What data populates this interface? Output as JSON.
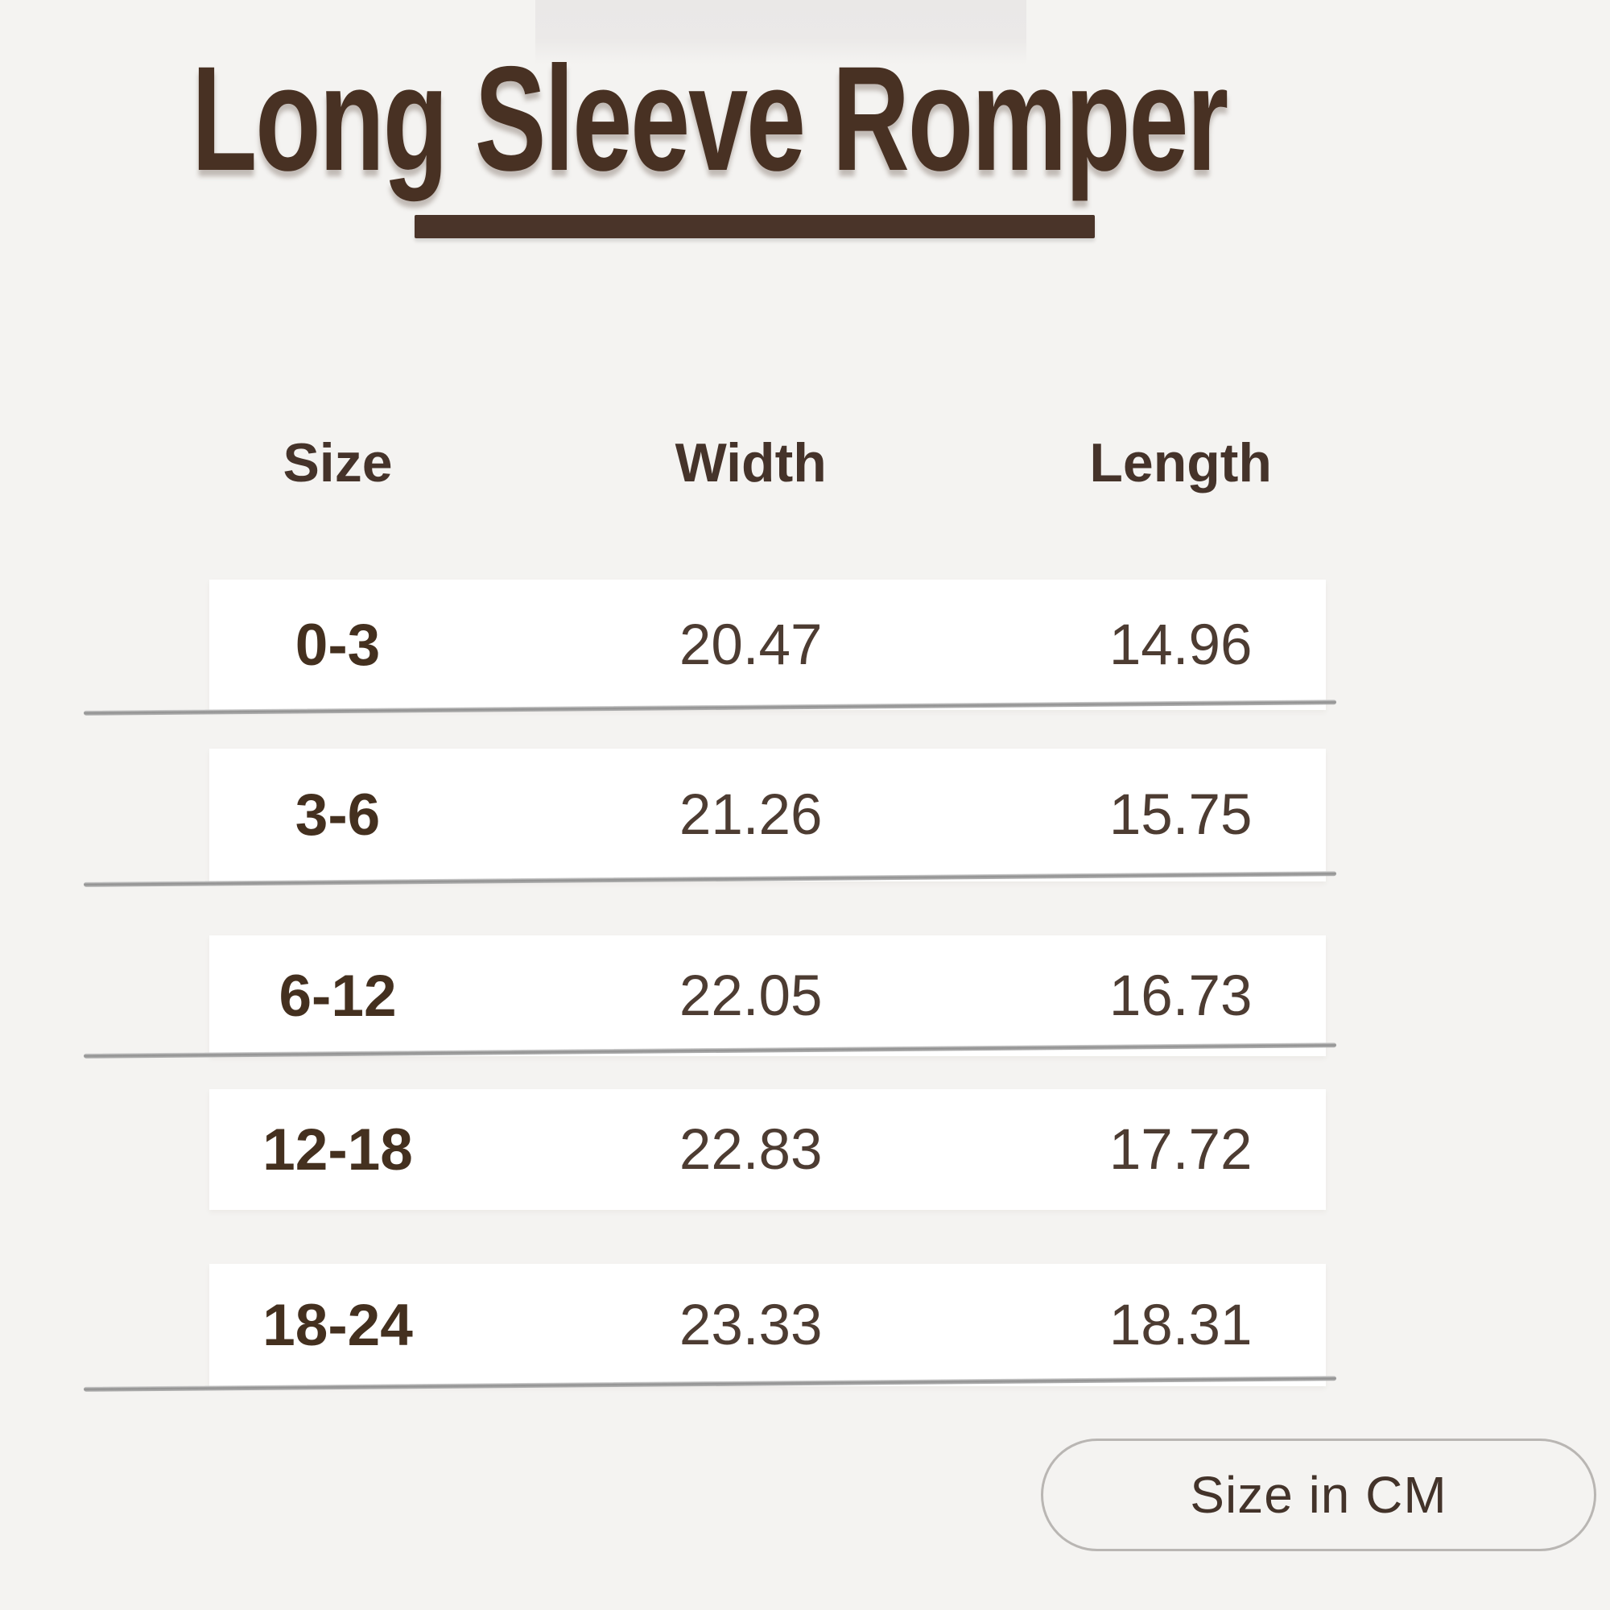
{
  "page": {
    "background_color": "#f4f3f1",
    "accent_brown": "#483123",
    "row_background": "#ffffff",
    "separator_gray": "#9a9a9a"
  },
  "header": {
    "title": "Long Sleeve Romper"
  },
  "table": {
    "columns": [
      "Size",
      "Width",
      "Length"
    ],
    "rows": [
      {
        "size": "0-3",
        "width": "20.47",
        "length": "14.96"
      },
      {
        "size": "3-6",
        "width": "21.26",
        "length": "15.75"
      },
      {
        "size": "6-12",
        "width": "22.05",
        "length": "16.73"
      },
      {
        "size": "12-18",
        "width": "22.83",
        "length": "17.72"
      },
      {
        "size": "18-24",
        "width": "23.33",
        "length": "18.31"
      }
    ]
  },
  "footer": {
    "unit_label": "Size in CM"
  }
}
